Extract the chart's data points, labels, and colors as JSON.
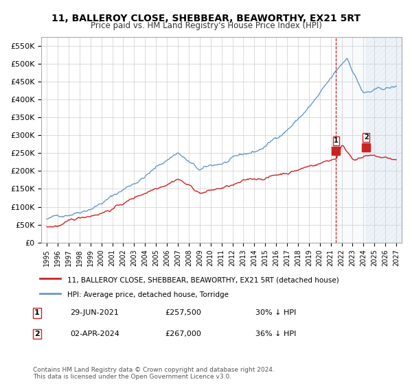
{
  "title": "11, BALLEROY CLOSE, SHEBBEAR, BEAWORTHY, EX21 5RT",
  "subtitle": "Price paid vs. HM Land Registry's House Price Index (HPI)",
  "ylabel_values": [
    0,
    50000,
    100000,
    150000,
    200000,
    250000,
    300000,
    350000,
    400000,
    450000,
    500000,
    550000
  ],
  "ylabel_labels": [
    "£0",
    "£50K",
    "£100K",
    "£150K",
    "£200K",
    "£250K",
    "£300K",
    "£350K",
    "£400K",
    "£450K",
    "£500K",
    "£550K"
  ],
  "ylim": [
    0,
    575000
  ],
  "xlim_start": 1994.5,
  "xlim_end": 2027.5,
  "xtick_years": [
    1995,
    1996,
    1997,
    1998,
    1999,
    2000,
    2001,
    2002,
    2003,
    2004,
    2005,
    2006,
    2007,
    2008,
    2009,
    2010,
    2011,
    2012,
    2013,
    2014,
    2015,
    2016,
    2017,
    2018,
    2019,
    2020,
    2021,
    2022,
    2023,
    2024,
    2025,
    2026,
    2027
  ],
  "hpi_color": "#6699cc",
  "price_paid_color": "#cc2222",
  "vline_color": "#cc0000",
  "vline_style": "--",
  "shade_color": "#d0e0f0",
  "hatch_color": "#aabbcc",
  "sale1_x": 2021.49,
  "sale1_y": 257500,
  "sale1_label": "1",
  "sale2_x": 2024.25,
  "sale2_y": 267000,
  "sale2_label": "2",
  "legend_line1": "11, BALLEROY CLOSE, SHEBBEAR, BEAWORTHY, EX21 5RT (detached house)",
  "legend_line2": "HPI: Average price, detached house, Torridge",
  "annotation1_date": "29-JUN-2021",
  "annotation1_price": "£257,500",
  "annotation1_pct": "30% ↓ HPI",
  "annotation2_date": "02-APR-2024",
  "annotation2_price": "£267,000",
  "annotation2_pct": "36% ↓ HPI",
  "footer": "Contains HM Land Registry data © Crown copyright and database right 2024.\nThis data is licensed under the Open Government Licence v3.0.",
  "background_color": "#ffffff",
  "grid_color": "#cccccc"
}
